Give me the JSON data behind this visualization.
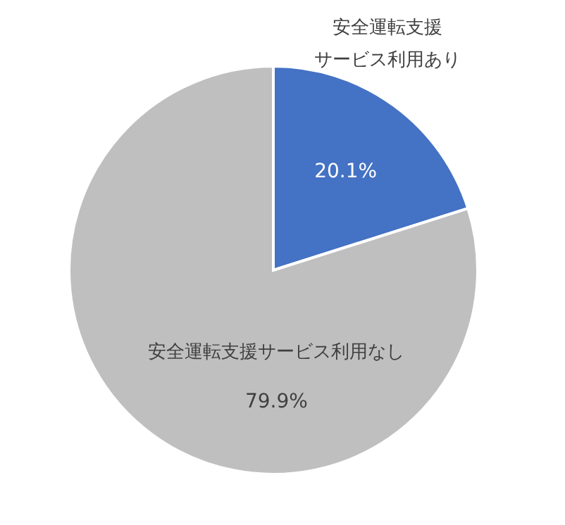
{
  "chart_data": {
    "type": "pie",
    "categories": [
      "安全運転支援サービス利用あり",
      "安全運転支援サービス利用なし"
    ],
    "values": [
      20.1,
      79.9
    ],
    "colors": [
      "#4472c4",
      "#bfbfbf"
    ],
    "value_labels": [
      "20.1%",
      "79.9%"
    ],
    "legend": false
  }
}
